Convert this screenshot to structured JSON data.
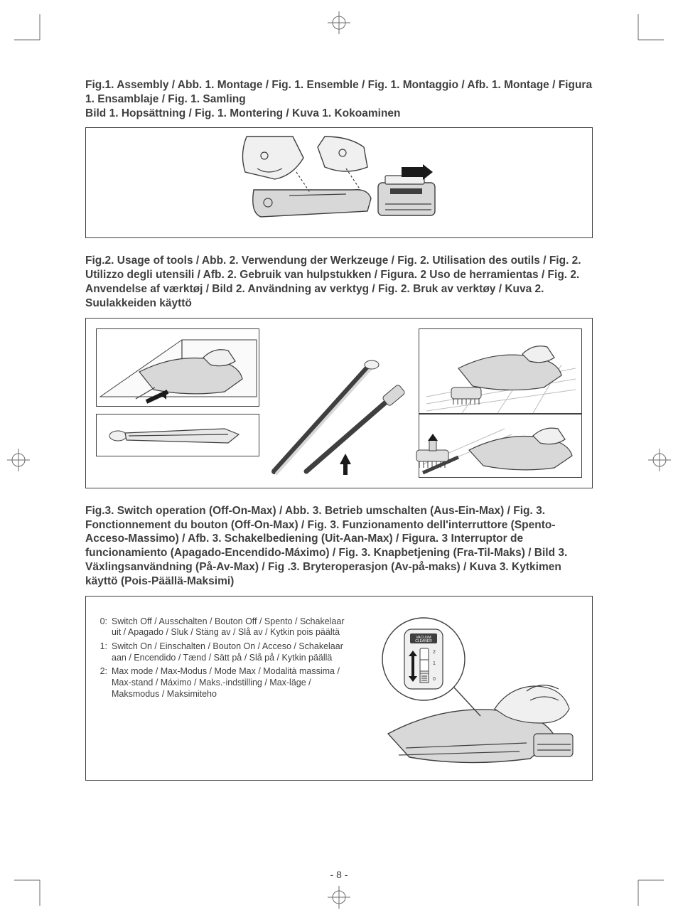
{
  "page_number": "- 8 -",
  "fig1_caption": "Fig.1. Assembly / Abb. 1. Montage / Fig. 1. Ensemble / Fig. 1. Montaggio / Afb. 1. Montage / Figura 1. Ensamblaje / Fig. 1. Samling\nBild 1. Hopsättning / Fig. 1. Montering / Kuva 1. Kokoaminen",
  "fig2_caption": "Fig.2. Usage of tools / Abb. 2. Verwendung der Werkzeuge / Fig. 2. Utilisation des outils / Fig. 2. Utilizzo degli utensili / Afb. 2. Gebruik van hulpstukken / Figura. 2 Uso de herramientas / Fig. 2. Anvendelse af værktøj / Bild 2. Användning av verktyg / Fig. 2. Bruk av verktøy / Kuva 2. Suulakkeiden käyttö",
  "fig3_caption": "Fig.3. Switch operation (Off-On-Max) / Abb. 3. Betrieb umschalten (Aus-Ein-Max) / Fig. 3. Fonctionnement du bouton (Off-On-Max) / Fig. 3. Funzionamento dell'interruttore (Spento-Acceso-Massimo) / Afb. 3. Schakelbediening (Uit-Aan-Max) / Figura. 3 Interruptor de funcionamiento (Apagado-Encendido-Máximo) / Fig. 3. Knapbetjening (Fra-Til-Maks) / Bild 3. Växlingsanvändning (På-Av-Max) / Fig .3. Bryteroperasjon (Av-på-maks) / Kuva 3. Kytkimen käyttö (Pois-Päällä-Maksimi)",
  "switch_items": [
    {
      "key": "0:",
      "text": "Switch Off / Ausschalten / Bouton Off / Spento / Schakelaar uit / Apagado / Sluk / Stäng av / Slå av / Kytkin pois päältä"
    },
    {
      "key": "1:",
      "text": "Switch On / Einschalten / Bouton On / Acceso / Schakelaar aan / Encendido / Tænd / Sätt på / Slå på / Kytkin päällä"
    },
    {
      "key": "2:",
      "text": "Max mode / Max-Modus / Mode Max / Modalità massima / Max-stand / Máximo / Maks.-indstilling / Max-läge / Maksmodus / Maksimiteho"
    }
  ],
  "switch_label": "VACUUM\nCLEANER",
  "switch_positions": [
    "2",
    "1",
    "0"
  ],
  "colors": {
    "stroke": "#3f3f40",
    "fill_light": "#f0f0f0",
    "fill_mid": "#d8d8d8",
    "bg": "#ffffff"
  }
}
